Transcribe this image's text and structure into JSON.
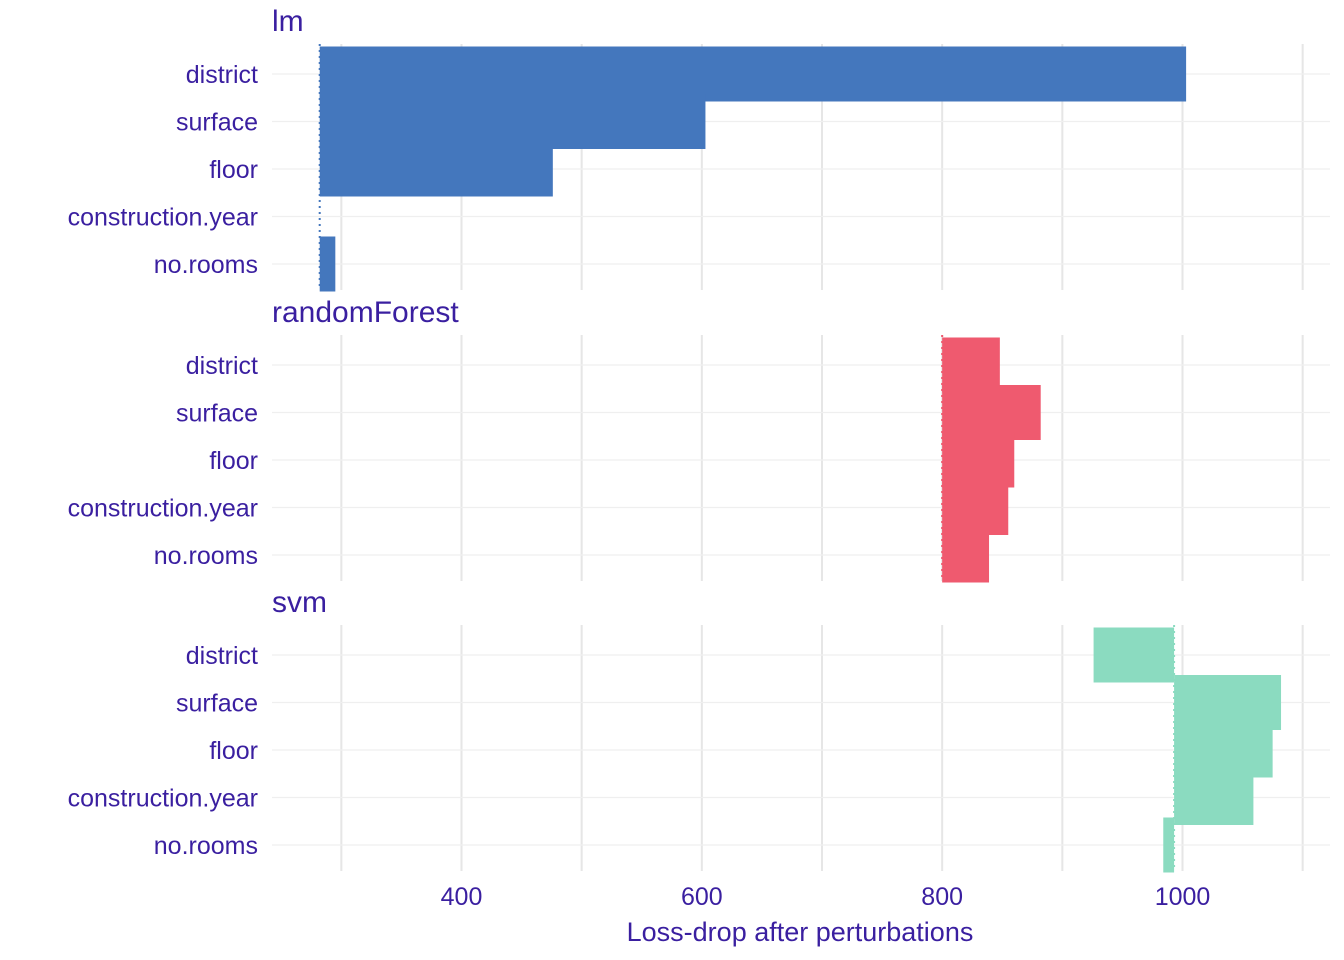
{
  "chart_data": {
    "type": "bar",
    "variant": "floating-horizontal-bars (faceted)",
    "xlabel": "Loss-drop after perturbations",
    "x_ticks": [
      400,
      600,
      800,
      1000
    ],
    "xlim": [
      244,
      1290
    ],
    "grid": true,
    "legend": "none",
    "categories": [
      "district",
      "surface",
      "floor",
      "construction.year",
      "no.rooms"
    ],
    "panels": [
      {
        "title": "lm",
        "color": "#4477BD",
        "baseline": 282,
        "values": [
          1003,
          603,
          476,
          282,
          295
        ]
      },
      {
        "title": "randomForest",
        "color": "#EF5A6F",
        "baseline": 800,
        "values": [
          848,
          882,
          860,
          855,
          839
        ]
      },
      {
        "title": "svm",
        "color": "#8BDBC0",
        "baseline": 993,
        "values": [
          926,
          1082,
          1075,
          1059,
          984
        ]
      }
    ]
  },
  "colors": {
    "text": "#3a1fa0",
    "grid": "#e6e6e6"
  }
}
